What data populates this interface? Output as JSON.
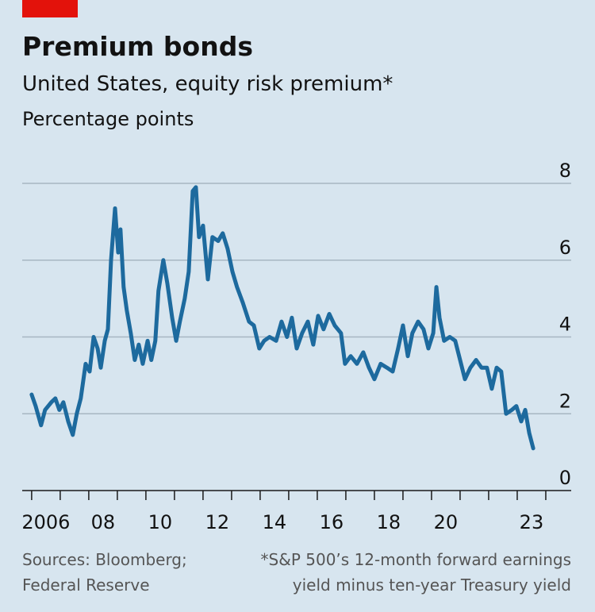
{
  "chart_data": {
    "type": "line",
    "title": "Premium bonds",
    "subtitle": "United States, equity risk premium*",
    "y_label": "Percentage points",
    "source": [
      "Sources: Bloomberg;",
      "Federal Reserve"
    ],
    "note": [
      "*S&P 500’s 12-month forward earnings",
      "yield minus ten-year Treasury yield"
    ],
    "xlim": [
      2005.67,
      2024.89
    ],
    "ylim": [
      0,
      8
    ],
    "yticks": [
      0,
      2,
      4,
      6,
      8
    ],
    "xticks": [
      {
        "value": 2006.5,
        "label": "2006"
      },
      {
        "value": 2008.5,
        "label": "08"
      },
      {
        "value": 2010.5,
        "label": "10"
      },
      {
        "value": 2012.5,
        "label": "12"
      },
      {
        "value": 2014.5,
        "label": "14"
      },
      {
        "value": 2016.5,
        "label": "16"
      },
      {
        "value": 2018.5,
        "label": "18"
      },
      {
        "value": 2020.5,
        "label": "20"
      },
      {
        "value": 2023.5,
        "label": "23"
      }
    ],
    "x_minor_ticks": [
      2006,
      2007,
      2008,
      2009,
      2010,
      2011,
      2012,
      2013,
      2014,
      2015,
      2016,
      2017,
      2018,
      2019,
      2020,
      2021,
      2022,
      2023,
      2024
    ],
    "grid": true,
    "color": "#1d6a9e",
    "x": [
      2006.0,
      2006.14,
      2006.33,
      2006.47,
      2006.69,
      2006.83,
      2006.97,
      2007.11,
      2007.28,
      2007.44,
      2007.58,
      2007.72,
      2007.89,
      2008.03,
      2008.17,
      2008.31,
      2008.42,
      2008.56,
      2008.67,
      2008.78,
      2008.92,
      2009.03,
      2009.11,
      2009.22,
      2009.33,
      2009.47,
      2009.61,
      2009.75,
      2009.89,
      2010.06,
      2010.19,
      2010.33,
      2010.44,
      2010.61,
      2010.75,
      2010.92,
      2011.06,
      2011.19,
      2011.36,
      2011.5,
      2011.64,
      2011.75,
      2011.86,
      2012.0,
      2012.17,
      2012.33,
      2012.53,
      2012.69,
      2012.86,
      2013.03,
      2013.19,
      2013.39,
      2013.61,
      2013.78,
      2013.97,
      2014.14,
      2014.33,
      2014.56,
      2014.75,
      2014.94,
      2015.11,
      2015.28,
      2015.47,
      2015.67,
      2015.86,
      2016.03,
      2016.22,
      2016.42,
      2016.61,
      2016.83,
      2016.97,
      2017.17,
      2017.39,
      2017.61,
      2017.81,
      2018.0,
      2018.22,
      2018.44,
      2018.64,
      2018.83,
      2019.0,
      2019.17,
      2019.33,
      2019.53,
      2019.72,
      2019.89,
      2020.06,
      2020.17,
      2020.28,
      2020.44,
      2020.64,
      2020.83,
      2021.0,
      2021.17,
      2021.36,
      2021.56,
      2021.75,
      2021.94,
      2022.11,
      2022.28,
      2022.44,
      2022.61,
      2022.81,
      2022.97,
      2023.14,
      2023.28,
      2023.42,
      2023.56
    ],
    "values": [
      2.5,
      2.2,
      1.7,
      2.1,
      2.3,
      2.4,
      2.1,
      2.3,
      1.8,
      1.45,
      2.0,
      2.4,
      3.3,
      3.1,
      4.0,
      3.7,
      3.2,
      3.9,
      4.2,
      6.0,
      7.35,
      6.2,
      6.8,
      5.3,
      4.7,
      4.1,
      3.4,
      3.8,
      3.3,
      3.9,
      3.4,
      3.9,
      5.2,
      6.0,
      5.4,
      4.5,
      3.9,
      4.4,
      5.0,
      5.7,
      7.8,
      7.9,
      6.6,
      6.9,
      5.5,
      6.6,
      6.5,
      6.7,
      6.3,
      5.7,
      5.3,
      4.9,
      4.4,
      4.3,
      3.7,
      3.9,
      4.0,
      3.9,
      4.4,
      4.0,
      4.5,
      3.7,
      4.1,
      4.4,
      3.8,
      4.55,
      4.2,
      4.6,
      4.3,
      4.1,
      3.3,
      3.5,
      3.3,
      3.6,
      3.2,
      2.9,
      3.3,
      3.2,
      3.1,
      3.7,
      4.3,
      3.5,
      4.1,
      4.4,
      4.2,
      3.7,
      4.1,
      5.3,
      4.5,
      3.9,
      4.0,
      3.9,
      3.4,
      2.9,
      3.2,
      3.4,
      3.2,
      3.2,
      2.65,
      3.2,
      3.1,
      2.0,
      2.1,
      2.2,
      1.8,
      2.1,
      1.5,
      1.1
    ]
  }
}
